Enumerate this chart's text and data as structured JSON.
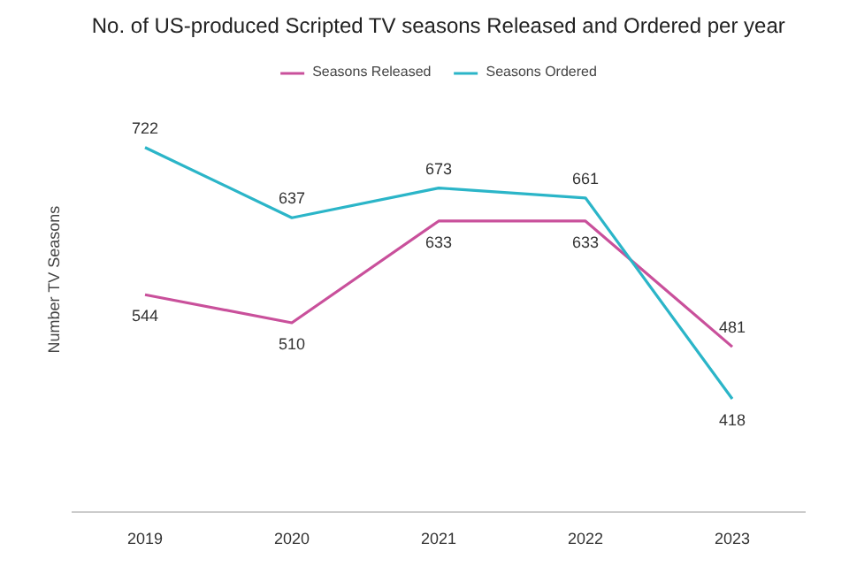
{
  "chart_data": {
    "type": "line",
    "title": "No. of US-produced Scripted TV seasons Released and Ordered per year",
    "ylabel": "Number TV Seasons",
    "categories": [
      "2019",
      "2020",
      "2021",
      "2022",
      "2023"
    ],
    "series": [
      {
        "name": "Seasons Released",
        "color": "#c9509b",
        "values": [
          544,
          510,
          633,
          633,
          481
        ]
      },
      {
        "name": "Seasons Ordered",
        "color": "#2bb5c8",
        "values": [
          722,
          637,
          673,
          661,
          418
        ]
      }
    ],
    "data_labels": true,
    "legend": "top",
    "line_style": "solid"
  }
}
